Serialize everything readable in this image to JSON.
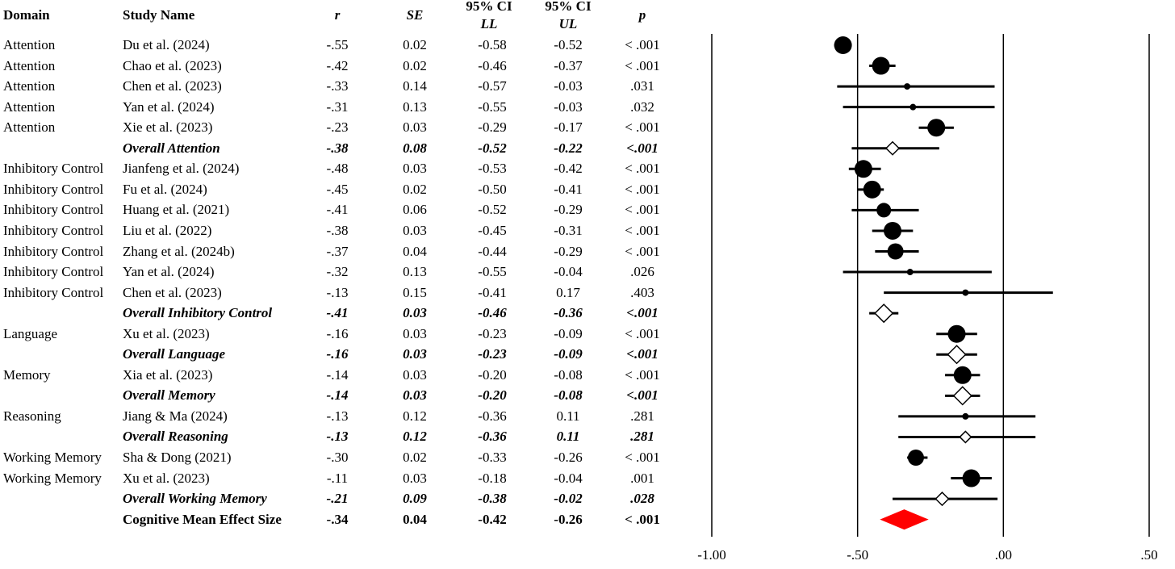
{
  "table": {
    "headers": {
      "domain": "Domain",
      "study": "Study Name",
      "r": "r",
      "se": "SE",
      "ll_top": "95% CI",
      "ll_bottom": "LL",
      "ul_top": "95% CI",
      "ul_bottom": "UL",
      "p": "p"
    },
    "rows": [
      {
        "domain": "Attention",
        "study": "Du et al. (2024)",
        "r": "-.55",
        "se": "0.02",
        "ll": "-0.58",
        "ul": "-0.52",
        "p": "< .001",
        "kind": "study",
        "weight": 11
      },
      {
        "domain": "Attention",
        "study": "Chao et al. (2023)",
        "r": "-.42",
        "se": "0.02",
        "ll": "-0.46",
        "ul": "-0.37",
        "p": "< .001",
        "kind": "study",
        "weight": 11
      },
      {
        "domain": "Attention",
        "study": "Chen et al. (2023)",
        "r": "-.33",
        "se": "0.14",
        "ll": "-0.57",
        "ul": "-0.03",
        "p": ".031",
        "kind": "study",
        "weight": 4
      },
      {
        "domain": "Attention",
        "study": "Yan et al. (2024)",
        "r": "-.31",
        "se": "0.13",
        "ll": "-0.55",
        "ul": "-0.03",
        "p": ".032",
        "kind": "study",
        "weight": 4
      },
      {
        "domain": "Attention",
        "study": "Xie et al. (2023)",
        "r": "-.23",
        "se": "0.03",
        "ll": "-0.29",
        "ul": "-0.17",
        "p": "< .001",
        "kind": "study",
        "weight": 11
      },
      {
        "domain": "",
        "study": "Overall Attention",
        "r": "-.38",
        "se": "0.08",
        "ll": "-0.52",
        "ul": "-0.22",
        "p": "<.001",
        "kind": "overall",
        "weight": 8
      },
      {
        "domain": "Inhibitory Control",
        "study": "Jianfeng et al. (2024)",
        "r": "-.48",
        "se": "0.03",
        "ll": "-0.53",
        "ul": "-0.42",
        "p": "< .001",
        "kind": "study",
        "weight": 11
      },
      {
        "domain": "Inhibitory Control",
        "study": "Fu et al. (2024)",
        "r": "-.45",
        "se": "0.02",
        "ll": "-0.50",
        "ul": "-0.41",
        "p": "< .001",
        "kind": "study",
        "weight": 11
      },
      {
        "domain": "Inhibitory Control",
        "study": "Huang et al. (2021)",
        "r": "-.41",
        "se": "0.06",
        "ll": "-0.52",
        "ul": "-0.29",
        "p": "< .001",
        "kind": "study",
        "weight": 9
      },
      {
        "domain": "Inhibitory Control",
        "study": "Liu et al. (2022)",
        "r": "-.38",
        "se": "0.03",
        "ll": "-0.45",
        "ul": "-0.31",
        "p": "< .001",
        "kind": "study",
        "weight": 11
      },
      {
        "domain": "Inhibitory Control",
        "study": "Zhang et al. (2024b)",
        "r": "-.37",
        "se": "0.04",
        "ll": "-0.44",
        "ul": "-0.29",
        "p": "< .001",
        "kind": "study",
        "weight": 10
      },
      {
        "domain": "Inhibitory Control",
        "study": "Yan et al. (2024)",
        "r": "-.32",
        "se": "0.13",
        "ll": "-0.55",
        "ul": "-0.04",
        "p": ".026",
        "kind": "study",
        "weight": 4
      },
      {
        "domain": "Inhibitory Control",
        "study": "Chen et al. (2023)",
        "r": "-.13",
        "se": "0.15",
        "ll": "-0.41",
        "ul": "0.17",
        "p": ".403",
        "kind": "study",
        "weight": 4
      },
      {
        "domain": "",
        "study": "Overall Inhibitory Control",
        "r": "-.41",
        "se": "0.03",
        "ll": "-0.46",
        "ul": "-0.36",
        "p": "<.001",
        "kind": "overall",
        "weight": 11
      },
      {
        "domain": "Language",
        "study": "Xu et al. (2023)",
        "r": "-.16",
        "se": "0.03",
        "ll": "-0.23",
        "ul": "-0.09",
        "p": "< .001",
        "kind": "study",
        "weight": 11
      },
      {
        "domain": "",
        "study": "Overall Language",
        "r": "-.16",
        "se": "0.03",
        "ll": "-0.23",
        "ul": "-0.09",
        "p": "<.001",
        "kind": "overall",
        "weight": 11
      },
      {
        "domain": "Memory",
        "study": "Xia et al. (2023)",
        "r": "-.14",
        "se": "0.03",
        "ll": "-0.20",
        "ul": "-0.08",
        "p": "< .001",
        "kind": "study",
        "weight": 11
      },
      {
        "domain": "",
        "study": "Overall Memory",
        "r": "-.14",
        "se": "0.03",
        "ll": "-0.20",
        "ul": "-0.08",
        "p": "<.001",
        "kind": "overall",
        "weight": 11
      },
      {
        "domain": "Reasoning",
        "study": "Jiang & Ma (2024)",
        "r": "-.13",
        "se": "0.12",
        "ll": "-0.36",
        "ul": "0.11",
        "p": ".281",
        "kind": "study",
        "weight": 4
      },
      {
        "domain": "",
        "study": "Overall Reasoning",
        "r": "-.13",
        "se": "0.12",
        "ll": "-0.36",
        "ul": "0.11",
        "p": ".281",
        "kind": "overall",
        "weight": 7
      },
      {
        "domain": "Working Memory",
        "study": "Sha & Dong (2021)",
        "r": "-.30",
        "se": "0.02",
        "ll": "-0.33",
        "ul": "-0.26",
        "p": "< .001",
        "kind": "study",
        "weight": 10
      },
      {
        "domain": "Working Memory",
        "study": "Xu et al. (2023)",
        "r": "-.11",
        "se": "0.03",
        "ll": "-0.18",
        "ul": "-0.04",
        "p": ".001",
        "kind": "study",
        "weight": 11
      },
      {
        "domain": "",
        "study": "Overall Working Memory",
        "r": "-.21",
        "se": "0.09",
        "ll": "-0.38",
        "ul": "-0.02",
        "p": ".028",
        "kind": "overall",
        "weight": 8
      },
      {
        "domain": "",
        "study": "Cognitive Mean Effect Size",
        "r": "-.34",
        "se": "0.04",
        "ll": "-0.42",
        "ul": "-0.26",
        "p": "< .001",
        "kind": "mean",
        "weight": 12
      }
    ]
  },
  "chart_data": {
    "type": "forest",
    "xlim": [
      -1.0,
      0.5
    ],
    "ticks": [
      -1.0,
      -0.5,
      0.0,
      0.5
    ],
    "tick_labels": [
      "-1.00",
      "-.50",
      ".00",
      ".50"
    ],
    "colors": {
      "marker": "#000000",
      "overall_fill": "#ffffff",
      "mean_fill": "#ff0000"
    },
    "points": [
      {
        "label": "Du et al. (2024)",
        "x": -0.55,
        "ll": -0.58,
        "ul": -0.52
      },
      {
        "label": "Chao et al. (2023)",
        "x": -0.42,
        "ll": -0.46,
        "ul": -0.37
      },
      {
        "label": "Chen et al. (2023)",
        "x": -0.33,
        "ll": -0.57,
        "ul": -0.03
      },
      {
        "label": "Yan et al. (2024)",
        "x": -0.31,
        "ll": -0.55,
        "ul": -0.03
      },
      {
        "label": "Xie et al. (2023)",
        "x": -0.23,
        "ll": -0.29,
        "ul": -0.17
      },
      {
        "label": "Overall Attention",
        "x": -0.38,
        "ll": -0.52,
        "ul": -0.22
      },
      {
        "label": "Jianfeng et al. (2024)",
        "x": -0.48,
        "ll": -0.53,
        "ul": -0.42
      },
      {
        "label": "Fu et al. (2024)",
        "x": -0.45,
        "ll": -0.5,
        "ul": -0.41
      },
      {
        "label": "Huang et al. (2021)",
        "x": -0.41,
        "ll": -0.52,
        "ul": -0.29
      },
      {
        "label": "Liu et al. (2022)",
        "x": -0.38,
        "ll": -0.45,
        "ul": -0.31
      },
      {
        "label": "Zhang et al. (2024b)",
        "x": -0.37,
        "ll": -0.44,
        "ul": -0.29
      },
      {
        "label": "Yan et al. (2024)",
        "x": -0.32,
        "ll": -0.55,
        "ul": -0.04
      },
      {
        "label": "Chen et al. (2023)",
        "x": -0.13,
        "ll": -0.41,
        "ul": 0.17
      },
      {
        "label": "Overall Inhibitory Control",
        "x": -0.41,
        "ll": -0.46,
        "ul": -0.36
      },
      {
        "label": "Xu et al. (2023)",
        "x": -0.16,
        "ll": -0.23,
        "ul": -0.09
      },
      {
        "label": "Overall Language",
        "x": -0.16,
        "ll": -0.23,
        "ul": -0.09
      },
      {
        "label": "Xia et al. (2023)",
        "x": -0.14,
        "ll": -0.2,
        "ul": -0.08
      },
      {
        "label": "Overall Memory",
        "x": -0.14,
        "ll": -0.2,
        "ul": -0.08
      },
      {
        "label": "Jiang & Ma (2024)",
        "x": -0.13,
        "ll": -0.36,
        "ul": 0.11
      },
      {
        "label": "Overall Reasoning",
        "x": -0.13,
        "ll": -0.36,
        "ul": 0.11
      },
      {
        "label": "Sha & Dong (2021)",
        "x": -0.3,
        "ll": -0.33,
        "ul": -0.26
      },
      {
        "label": "Xu et al. (2023)",
        "x": -0.11,
        "ll": -0.18,
        "ul": -0.04
      },
      {
        "label": "Overall Working Memory",
        "x": -0.21,
        "ll": -0.38,
        "ul": -0.02
      },
      {
        "label": "Cognitive Mean Effect Size",
        "x": -0.34,
        "ll": -0.42,
        "ul": -0.26
      }
    ]
  }
}
